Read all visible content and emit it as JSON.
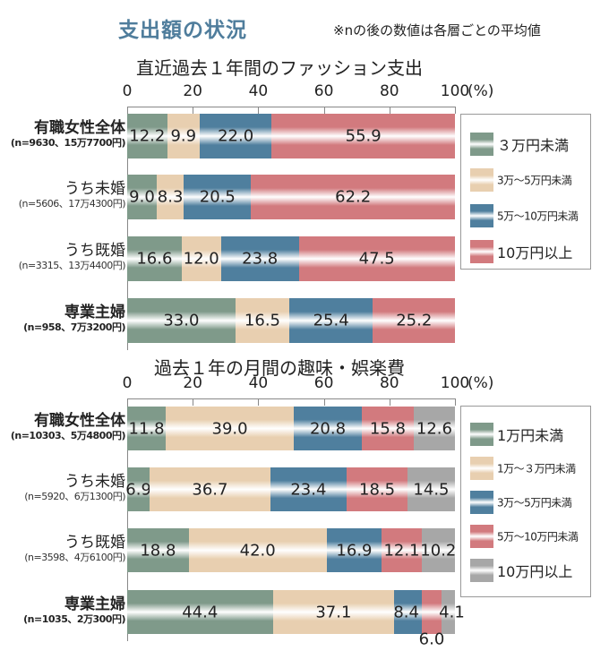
{
  "header": {
    "title": "支出額の状況",
    "note": "※nの後の数値は各層ごとの平均値"
  },
  "colors": {
    "green": "#7f9a8a",
    "beige": "#e8cfb0",
    "blue": "#4f7f9e",
    "pink": "#d27a7e",
    "gray": "#a7a7a7",
    "title": "#4f7d9c"
  },
  "chart_data": [
    {
      "type": "bar",
      "orientation": "horizontal",
      "stacked": true,
      "title": "直近過去１年間のファッション支出",
      "xlabel": "(%)",
      "ylabel": "",
      "xlim": [
        0,
        100
      ],
      "xticks": [
        "0",
        "20",
        "40",
        "60",
        "80",
        "100"
      ],
      "unit": "(%)",
      "legend_position": "right",
      "categories": [
        {
          "name": "有職女性全体",
          "sub": "(n=9630、15万7700円)",
          "bold": true
        },
        {
          "name": "うち未婚",
          "sub": "(n=5606、17万4300円)",
          "bold": false
        },
        {
          "name": "うち既婚",
          "sub": "(n=3315、13万4400円)",
          "bold": false
        },
        {
          "name": "専業主婦",
          "sub": "(n=958、7万3200円)",
          "bold": true
        }
      ],
      "series": [
        {
          "name": "３万円未満",
          "color_key": "green",
          "values": [
            12.2,
            9.0,
            16.6,
            33.0
          ],
          "labels": [
            "12.2",
            "9.0",
            "16.6",
            "33.0"
          ]
        },
        {
          "name": "3万～5万円未満",
          "color_key": "beige",
          "values": [
            9.9,
            8.3,
            12.0,
            16.5
          ],
          "labels": [
            "9.9",
            "8.3",
            "12.0",
            "16.5"
          ]
        },
        {
          "name": "5万～10万円未満",
          "color_key": "blue",
          "values": [
            22.0,
            20.5,
            23.8,
            25.4
          ],
          "labels": [
            "22.0",
            "20.5",
            "23.8",
            "25.4"
          ]
        },
        {
          "name": "10万円以上",
          "color_key": "pink",
          "values": [
            55.9,
            62.2,
            47.5,
            25.2
          ],
          "labels": [
            "55.9",
            "62.2",
            "47.5",
            "25.2"
          ]
        }
      ]
    },
    {
      "type": "bar",
      "orientation": "horizontal",
      "stacked": true,
      "title": "過去１年の月間の趣味・娯楽費",
      "xlabel": "(%)",
      "ylabel": "",
      "xlim": [
        0,
        100
      ],
      "xticks": [
        "0",
        "20",
        "40",
        "60",
        "80",
        "100"
      ],
      "unit": "(%)",
      "legend_position": "right",
      "categories": [
        {
          "name": "有職女性全体",
          "sub": "(n=10303、5万4800円)",
          "bold": true
        },
        {
          "name": "うち未婚",
          "sub": "(n=5920、6万1300円)",
          "bold": false
        },
        {
          "name": "うち既婚",
          "sub": "(n=3598、4万6100円)",
          "bold": false
        },
        {
          "name": "専業主婦",
          "sub": "(n=1035、2万300円)",
          "bold": true
        }
      ],
      "series": [
        {
          "name": "1万円未満",
          "color_key": "green",
          "values": [
            11.8,
            6.9,
            18.8,
            44.4
          ],
          "labels": [
            "11.8",
            "6.9",
            "18.8",
            "44.4"
          ]
        },
        {
          "name": "1万～３万円未満",
          "color_key": "beige",
          "values": [
            39.0,
            36.7,
            42.0,
            37.1
          ],
          "labels": [
            "39.0",
            "36.7",
            "42.0",
            "37.1"
          ]
        },
        {
          "name": "3万～5万円未満",
          "color_key": "blue",
          "values": [
            20.8,
            23.4,
            16.9,
            8.4
          ],
          "labels": [
            "20.8",
            "23.4",
            "16.9",
            "8.4"
          ]
        },
        {
          "name": "5万～10万円未満",
          "color_key": "pink",
          "values": [
            15.8,
            18.5,
            12.1,
            6.0
          ],
          "labels": [
            "15.8",
            "18.5",
            "12.1",
            "6.0"
          ]
        },
        {
          "name": "10万円以上",
          "color_key": "gray",
          "values": [
            12.6,
            14.5,
            10.2,
            4.1
          ],
          "labels": [
            "12.6",
            "14.5",
            "10.2",
            "4.1"
          ]
        }
      ]
    }
  ]
}
